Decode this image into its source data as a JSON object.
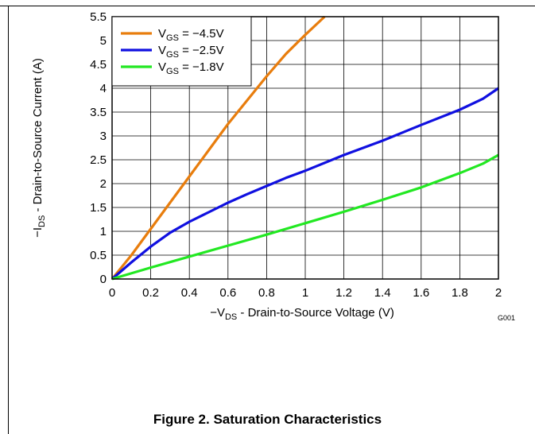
{
  "figure": {
    "caption": "Figure 2. Saturation Characteristics",
    "code": "G001"
  },
  "chart_data": {
    "type": "line",
    "title": "",
    "xlabel": {
      "prefix": "−V",
      "sub": "DS",
      "suffix": " - Drain-to-Source Voltage (V)"
    },
    "ylabel": {
      "prefix": "−I",
      "sub": "DS",
      "suffix": " - Drain-to-Source Current (A)"
    },
    "xlim": [
      0,
      2
    ],
    "ylim": [
      0,
      5.5
    ],
    "xticks": [
      "0",
      "0.2",
      "0.4",
      "0.6",
      "0.8",
      "1",
      "1.2",
      "1.4",
      "1.6",
      "1.8",
      "2"
    ],
    "yticks": [
      "0",
      "0.5",
      "1",
      "1.5",
      "2",
      "2.5",
      "3",
      "3.5",
      "4",
      "4.5",
      "5",
      "5.5"
    ],
    "grid": true,
    "legend_position": "top-left",
    "series": [
      {
        "name": {
          "prefix": "V",
          "sub": "GS",
          "suffix": " = −4.5V"
        },
        "color": "#E87D0D",
        "points": [
          [
            0,
            0
          ],
          [
            0.1,
            0.5
          ],
          [
            0.2,
            1.05
          ],
          [
            0.3,
            1.6
          ],
          [
            0.4,
            2.15
          ],
          [
            0.5,
            2.7
          ],
          [
            0.6,
            3.25
          ],
          [
            0.7,
            3.75
          ],
          [
            0.8,
            4.25
          ],
          [
            0.9,
            4.72
          ],
          [
            1.0,
            5.12
          ],
          [
            1.1,
            5.5
          ]
        ]
      },
      {
        "name": {
          "prefix": "V",
          "sub": "GS",
          "suffix": " = −2.5V"
        },
        "color": "#1010E0",
        "points": [
          [
            0,
            0
          ],
          [
            0.1,
            0.35
          ],
          [
            0.2,
            0.68
          ],
          [
            0.3,
            0.97
          ],
          [
            0.4,
            1.2
          ],
          [
            0.5,
            1.4
          ],
          [
            0.6,
            1.6
          ],
          [
            0.7,
            1.78
          ],
          [
            0.8,
            1.95
          ],
          [
            0.9,
            2.12
          ],
          [
            1.0,
            2.27
          ],
          [
            1.2,
            2.6
          ],
          [
            1.4,
            2.9
          ],
          [
            1.6,
            3.23
          ],
          [
            1.8,
            3.55
          ],
          [
            1.92,
            3.78
          ],
          [
            2.0,
            4.0
          ]
        ]
      },
      {
        "name": {
          "prefix": "V",
          "sub": "GS",
          "suffix": " = −1.8V"
        },
        "color": "#22E822",
        "points": [
          [
            0,
            0
          ],
          [
            0.2,
            0.24
          ],
          [
            0.4,
            0.47
          ],
          [
            0.6,
            0.7
          ],
          [
            0.8,
            0.93
          ],
          [
            1.0,
            1.17
          ],
          [
            1.2,
            1.41
          ],
          [
            1.4,
            1.66
          ],
          [
            1.6,
            1.92
          ],
          [
            1.8,
            2.22
          ],
          [
            1.92,
            2.42
          ],
          [
            2.0,
            2.6
          ]
        ]
      }
    ]
  }
}
